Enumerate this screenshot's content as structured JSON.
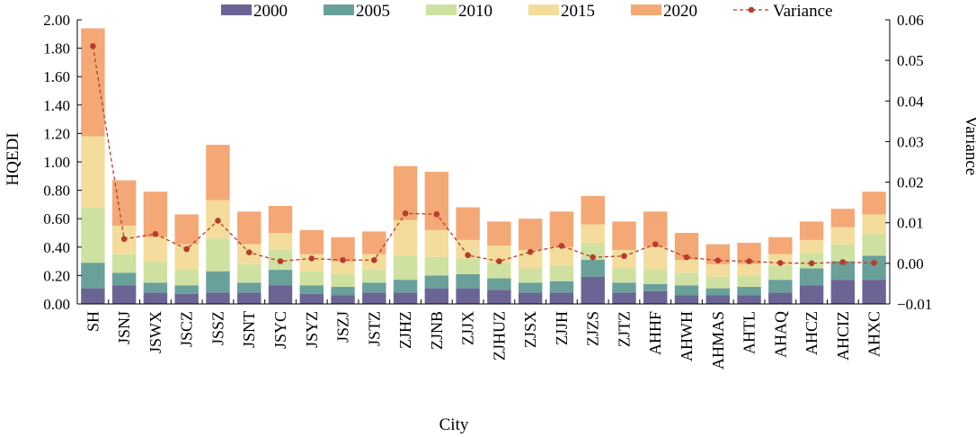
{
  "chart_data": {
    "type": "bar",
    "stacked": true,
    "xlabel": "City",
    "ylabel": "HQEDI",
    "y2label": "Variance",
    "ylim": [
      0,
      2.0
    ],
    "y2lim": [
      -0.01,
      0.06
    ],
    "yticks": [
      "0.00",
      "0.20",
      "0.40",
      "0.60",
      "0.80",
      "1.00",
      "1.20",
      "1.40",
      "1.60",
      "1.80",
      "2.00"
    ],
    "y2ticks": [
      "−0.01",
      "0.00",
      "0.01",
      "0.02",
      "0.03",
      "0.04",
      "0.05",
      "0.06"
    ],
    "grid": false,
    "legend_position": "top",
    "categories": [
      "SH",
      "JSNJ",
      "JSWX",
      "JSCZ",
      "JSSZ",
      "JSNT",
      "JSYC",
      "JSYZ",
      "JSZJ",
      "JSTZ",
      "ZJHZ",
      "ZJNB",
      "ZJJX",
      "ZJHUZ",
      "ZJSX",
      "ZJJH",
      "ZJZS",
      "ZJTZ",
      "AHHF",
      "AHWH",
      "AHMAS",
      "AHTL",
      "AHAQ",
      "AHCZ",
      "AHCIZ",
      "AHXC"
    ],
    "series": [
      {
        "name": "2000",
        "color": "#6a6594",
        "values": [
          0.11,
          0.13,
          0.08,
          0.07,
          0.08,
          0.08,
          0.13,
          0.07,
          0.06,
          0.08,
          0.08,
          0.11,
          0.11,
          0.1,
          0.08,
          0.08,
          0.19,
          0.08,
          0.09,
          0.06,
          0.06,
          0.06,
          0.08,
          0.13,
          0.17,
          0.17
        ]
      },
      {
        "name": "2005",
        "color": "#69a09a",
        "values": [
          0.18,
          0.09,
          0.07,
          0.06,
          0.15,
          0.07,
          0.11,
          0.06,
          0.06,
          0.07,
          0.09,
          0.09,
          0.1,
          0.08,
          0.07,
          0.08,
          0.12,
          0.07,
          0.05,
          0.07,
          0.05,
          0.06,
          0.09,
          0.12,
          0.13,
          0.17
        ]
      },
      {
        "name": "2010",
        "color": "#cfe1a0",
        "values": [
          0.39,
          0.13,
          0.15,
          0.11,
          0.23,
          0.13,
          0.14,
          0.1,
          0.09,
          0.09,
          0.17,
          0.13,
          0.11,
          0.11,
          0.1,
          0.11,
          0.12,
          0.1,
          0.1,
          0.09,
          0.08,
          0.08,
          0.1,
          0.11,
          0.12,
          0.15
        ]
      },
      {
        "name": "2015",
        "color": "#f4dc9d",
        "values": [
          0.5,
          0.2,
          0.17,
          0.18,
          0.27,
          0.14,
          0.12,
          0.12,
          0.09,
          0.11,
          0.25,
          0.19,
          0.13,
          0.12,
          0.13,
          0.13,
          0.13,
          0.13,
          0.16,
          0.09,
          0.09,
          0.08,
          0.08,
          0.09,
          0.12,
          0.14
        ]
      },
      {
        "name": "2020",
        "color": "#f4a875",
        "values": [
          0.76,
          0.32,
          0.32,
          0.21,
          0.39,
          0.23,
          0.19,
          0.17,
          0.17,
          0.16,
          0.38,
          0.41,
          0.23,
          0.17,
          0.22,
          0.25,
          0.2,
          0.2,
          0.25,
          0.19,
          0.14,
          0.15,
          0.12,
          0.13,
          0.13,
          0.16
        ]
      }
    ],
    "line_series": {
      "name": "Variance",
      "axis": "right",
      "color": "#b83b2b",
      "style": "dashed",
      "values": [
        0.0535,
        0.006,
        0.0072,
        0.0035,
        0.0105,
        0.0027,
        0.0005,
        0.0012,
        0.0008,
        0.0008,
        0.0123,
        0.0121,
        0.002,
        0.0005,
        0.0028,
        0.0043,
        0.0015,
        0.0018,
        0.0047,
        0.0015,
        0.0007,
        0.0005,
        0.0001,
        0.0,
        0.0003,
        0.0001
      ]
    }
  }
}
